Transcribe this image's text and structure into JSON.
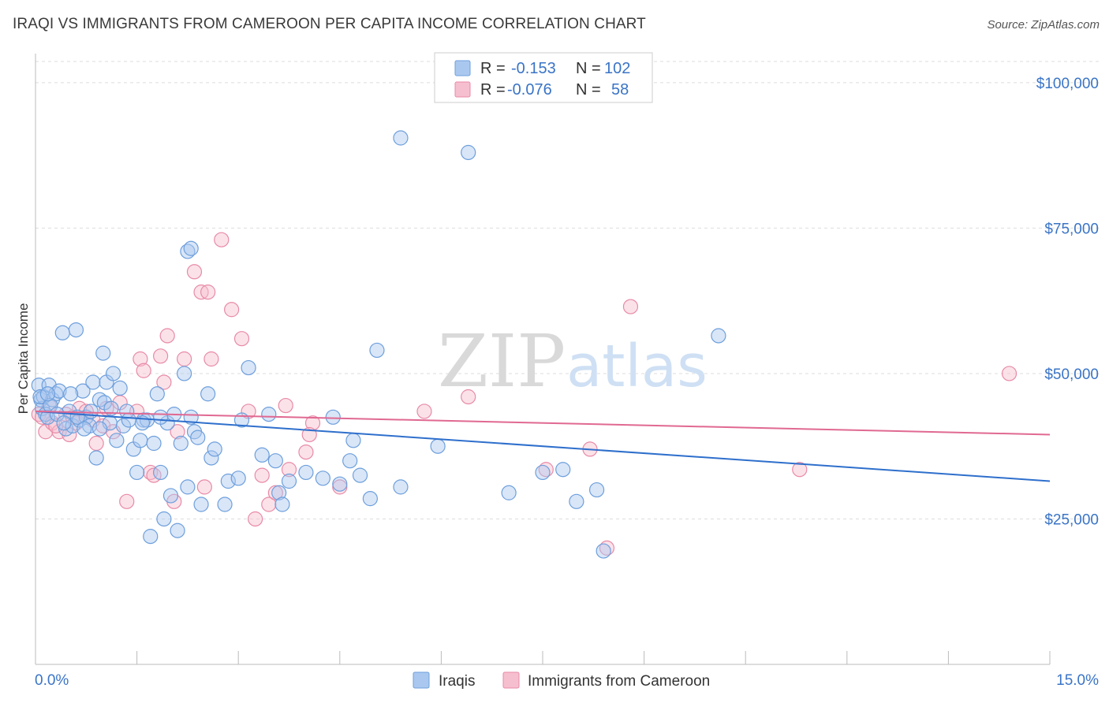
{
  "title": "IRAQI VS IMMIGRANTS FROM CAMEROON PER CAPITA INCOME CORRELATION CHART",
  "source": "Source: ZipAtlas.com",
  "watermark": {
    "zip": "ZIP",
    "atlas": "atlas"
  },
  "legend_top": [
    {
      "r_label": "R =",
      "r_value": "-0.153",
      "n_label": "N =",
      "n_value": "102"
    },
    {
      "r_label": "R =",
      "r_value": "-0.076",
      "n_label": "N =",
      "n_value": "58"
    }
  ],
  "legend_bottom": [
    "Iraqis",
    "Immigrants from Cameroon"
  ],
  "colors": {
    "iraqis_fill": "#aac8ef",
    "iraqis_stroke": "#6d9fdc",
    "iraqis_line": "#2e6fcc",
    "cameroon_fill": "#f6bfcf",
    "cameroon_stroke": "#e88aa7",
    "cameroon_line": "#e06992",
    "tick_label": "#3a74c6",
    "grid": "#dddddd"
  },
  "chart_data": {
    "type": "scatter",
    "xlabel": "",
    "ylabel": "Per Capita Income",
    "xlim": [
      0,
      15
    ],
    "ylim": [
      0,
      105000
    ],
    "x_ticks_labels": [
      "0.0%",
      "15.0%"
    ],
    "y_ticks": [
      25000,
      50000,
      75000,
      100000
    ],
    "y_tick_labels": [
      "$25,000",
      "$50,000",
      "$75,000",
      "$100,000"
    ],
    "grid": true,
    "series": [
      {
        "name": "Iraqis",
        "trend": {
          "x": [
            0,
            15
          ],
          "y": [
            43500,
            31500
          ]
        },
        "points": [
          [
            0.05,
            48000
          ],
          [
            0.08,
            45500
          ],
          [
            0.1,
            44000
          ],
          [
            0.12,
            46000
          ],
          [
            0.15,
            43000
          ],
          [
            0.18,
            42500
          ],
          [
            0.2,
            48000
          ],
          [
            0.25,
            45500
          ],
          [
            0.3,
            46500
          ],
          [
            0.35,
            47000
          ],
          [
            0.4,
            57000
          ],
          [
            0.45,
            40500
          ],
          [
            0.5,
            43500
          ],
          [
            0.55,
            41000
          ],
          [
            0.6,
            57500
          ],
          [
            0.65,
            42000
          ],
          [
            0.7,
            47000
          ],
          [
            0.75,
            42500
          ],
          [
            0.8,
            41000
          ],
          [
            0.85,
            48500
          ],
          [
            0.9,
            35500
          ],
          [
            0.95,
            45500
          ],
          [
            1.0,
            53500
          ],
          [
            1.05,
            48500
          ],
          [
            1.1,
            41500
          ],
          [
            1.15,
            50000
          ],
          [
            1.2,
            38500
          ],
          [
            1.25,
            47500
          ],
          [
            1.3,
            41000
          ],
          [
            1.35,
            43500
          ],
          [
            1.45,
            37000
          ],
          [
            1.5,
            33000
          ],
          [
            1.55,
            38500
          ],
          [
            1.6,
            42000
          ],
          [
            1.65,
            42000
          ],
          [
            1.7,
            22000
          ],
          [
            1.75,
            38000
          ],
          [
            1.8,
            46500
          ],
          [
            1.85,
            33000
          ],
          [
            1.9,
            25000
          ],
          [
            1.95,
            41500
          ],
          [
            2.0,
            29000
          ],
          [
            2.05,
            43000
          ],
          [
            2.1,
            23000
          ],
          [
            2.15,
            38000
          ],
          [
            2.2,
            50000
          ],
          [
            2.25,
            30500
          ],
          [
            2.3,
            42500
          ],
          [
            2.35,
            40000
          ],
          [
            2.4,
            39000
          ],
          [
            2.45,
            27500
          ],
          [
            2.55,
            46500
          ],
          [
            2.6,
            35500
          ],
          [
            2.65,
            37000
          ],
          [
            2.8,
            27500
          ],
          [
            2.85,
            31500
          ],
          [
            3.0,
            32000
          ],
          [
            3.05,
            42000
          ],
          [
            3.15,
            51000
          ],
          [
            3.35,
            36000
          ],
          [
            3.45,
            43000
          ],
          [
            3.55,
            35000
          ],
          [
            3.6,
            29500
          ],
          [
            3.65,
            27500
          ],
          [
            3.75,
            31500
          ],
          [
            4.0,
            33000
          ],
          [
            4.25,
            32000
          ],
          [
            4.4,
            42500
          ],
          [
            4.5,
            31000
          ],
          [
            4.65,
            35000
          ],
          [
            4.7,
            38500
          ],
          [
            4.8,
            32500
          ],
          [
            4.95,
            28500
          ],
          [
            5.05,
            54000
          ],
          [
            5.4,
            30500
          ],
          [
            5.4,
            90500
          ],
          [
            5.95,
            37500
          ],
          [
            6.4,
            88000
          ],
          [
            7.0,
            29500
          ],
          [
            7.5,
            33000
          ],
          [
            7.8,
            33500
          ],
          [
            8.0,
            28000
          ],
          [
            8.3,
            30000
          ],
          [
            8.4,
            19500
          ],
          [
            10.1,
            56500
          ],
          [
            0.07,
            46000
          ],
          [
            0.22,
            44500
          ],
          [
            0.32,
            43000
          ],
          [
            0.42,
            41500
          ],
          [
            0.52,
            46500
          ],
          [
            0.62,
            42500
          ],
          [
            0.72,
            40500
          ],
          [
            0.82,
            43500
          ],
          [
            1.02,
            45000
          ],
          [
            1.12,
            44000
          ],
          [
            1.38,
            42000
          ],
          [
            1.58,
            41500
          ],
          [
            2.25,
            71000
          ],
          [
            2.3,
            71500
          ],
          [
            0.95,
            40500
          ],
          [
            1.85,
            42500
          ],
          [
            0.18,
            46500
          ]
        ]
      },
      {
        "name": "Immigrants from Cameroon",
        "trend": {
          "x": [
            0,
            15
          ],
          "y": [
            43500,
            39500
          ]
        },
        "points": [
          [
            0.05,
            43000
          ],
          [
            0.1,
            42500
          ],
          [
            0.15,
            40000
          ],
          [
            0.2,
            44500
          ],
          [
            0.25,
            41500
          ],
          [
            0.35,
            40000
          ],
          [
            0.45,
            43000
          ],
          [
            0.55,
            42500
          ],
          [
            0.6,
            41500
          ],
          [
            0.65,
            44000
          ],
          [
            0.75,
            43500
          ],
          [
            0.85,
            42000
          ],
          [
            0.9,
            38000
          ],
          [
            1.0,
            41000
          ],
          [
            1.05,
            44000
          ],
          [
            1.15,
            40000
          ],
          [
            1.25,
            45000
          ],
          [
            1.35,
            28000
          ],
          [
            1.5,
            43500
          ],
          [
            1.55,
            52500
          ],
          [
            1.6,
            50500
          ],
          [
            1.7,
            33000
          ],
          [
            1.75,
            32500
          ],
          [
            1.85,
            53000
          ],
          [
            1.9,
            48500
          ],
          [
            1.95,
            56500
          ],
          [
            2.05,
            28000
          ],
          [
            2.1,
            40000
          ],
          [
            2.2,
            52500
          ],
          [
            2.35,
            67500
          ],
          [
            2.45,
            64000
          ],
          [
            2.5,
            30500
          ],
          [
            2.55,
            64000
          ],
          [
            2.6,
            52500
          ],
          [
            2.75,
            73000
          ],
          [
            2.9,
            61000
          ],
          [
            3.05,
            56000
          ],
          [
            3.15,
            43500
          ],
          [
            3.25,
            25000
          ],
          [
            3.35,
            32500
          ],
          [
            3.45,
            27500
          ],
          [
            3.55,
            29500
          ],
          [
            3.7,
            44500
          ],
          [
            3.75,
            33500
          ],
          [
            4.0,
            36500
          ],
          [
            4.1,
            41500
          ],
          [
            4.5,
            30500
          ],
          [
            5.75,
            43500
          ],
          [
            6.4,
            46000
          ],
          [
            7.55,
            33500
          ],
          [
            8.2,
            37000
          ],
          [
            8.45,
            20000
          ],
          [
            8.8,
            61500
          ],
          [
            11.3,
            33500
          ],
          [
            14.4,
            50000
          ],
          [
            0.3,
            41000
          ],
          [
            0.5,
            39500
          ],
          [
            4.05,
            39500
          ]
        ]
      }
    ]
  }
}
